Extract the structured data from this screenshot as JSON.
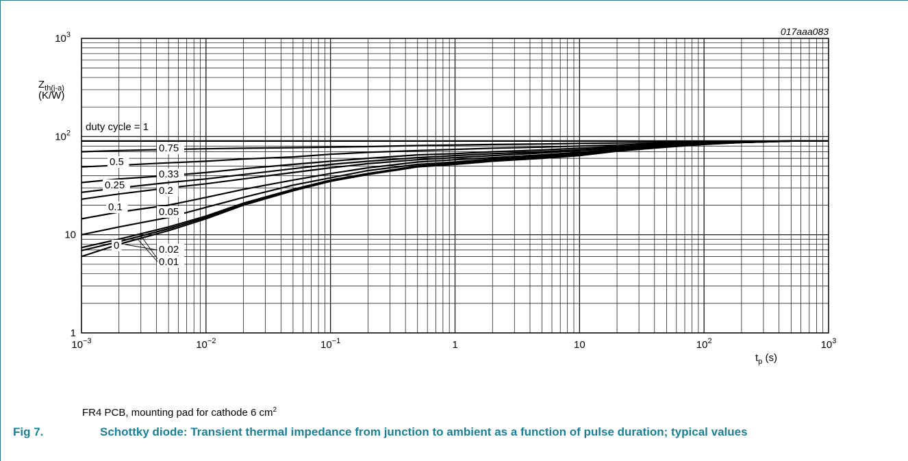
{
  "chart_data": {
    "type": "line",
    "figure_id": "017aaa083",
    "xscale": "log",
    "yscale": "log",
    "xlim": [
      0.001,
      1000
    ],
    "ylim": [
      1,
      1000
    ],
    "grid": true,
    "legend": "inline labels",
    "ylabel_main": "Z",
    "ylabel_sub": "th(j-a)",
    "ylabel_unit": "(K/W)",
    "xlabel_main": "t",
    "xlabel_sub": "p",
    "xlabel_unit": "(s)",
    "x_ticks": [
      {
        "value": 0.001,
        "base": "10",
        "exp": "−3"
      },
      {
        "value": 0.01,
        "base": "10",
        "exp": "−2"
      },
      {
        "value": 0.1,
        "base": "10",
        "exp": "−1"
      },
      {
        "value": 1,
        "base": "1",
        "exp": ""
      },
      {
        "value": 10,
        "base": "10",
        "exp": ""
      },
      {
        "value": 100,
        "base": "10",
        "exp": "2"
      },
      {
        "value": 1000,
        "base": "10",
        "exp": "3"
      }
    ],
    "y_ticks": [
      {
        "value": 1,
        "base": "1",
        "exp": ""
      },
      {
        "value": 10,
        "base": "10",
        "exp": ""
      },
      {
        "value": 100,
        "base": "10",
        "exp": "2"
      },
      {
        "value": 1000,
        "base": "10",
        "exp": "3"
      }
    ],
    "x": [
      0.001,
      0.002,
      0.005,
      0.01,
      0.02,
      0.05,
      0.1,
      0.2,
      0.5,
      1,
      2,
      5,
      10,
      20,
      50,
      100,
      200,
      500,
      1000
    ],
    "series": [
      {
        "name": "1",
        "values": [
          90,
          90,
          90,
          90,
          90,
          90,
          90,
          90,
          90,
          90,
          90,
          90,
          90,
          90,
          90,
          90,
          90,
          90,
          90
        ]
      },
      {
        "name": "0.75",
        "values": [
          70,
          72,
          74,
          75,
          76,
          77,
          78,
          79,
          81,
          82,
          83,
          84,
          85,
          86,
          87,
          88,
          89,
          90,
          90
        ]
      },
      {
        "name": "0.5",
        "values": [
          49,
          51,
          54,
          56,
          59,
          62,
          66,
          69,
          72,
          74,
          76,
          78,
          80,
          82,
          85,
          87,
          89,
          90,
          90
        ]
      },
      {
        "name": "0.33",
        "values": [
          34,
          37,
          40,
          43,
          47,
          52,
          56,
          60,
          65,
          67,
          70,
          73,
          76,
          79,
          83,
          86,
          88,
          90,
          90
        ]
      },
      {
        "name": "0.25",
        "values": [
          27,
          30,
          34,
          37,
          41,
          47,
          52,
          56,
          61,
          64,
          67,
          70,
          73,
          77,
          82,
          86,
          88,
          90,
          90
        ]
      },
      {
        "name": "0.2",
        "values": [
          23,
          26,
          30,
          33,
          37,
          43,
          48,
          53,
          58,
          61,
          64,
          68,
          72,
          76,
          81,
          85,
          88,
          90,
          90
        ]
      },
      {
        "name": "0.1",
        "values": [
          14.5,
          17,
          20,
          24,
          29,
          36,
          42,
          48,
          55,
          58,
          61,
          65,
          69,
          74,
          80,
          84,
          88,
          90,
          90
        ]
      },
      {
        "name": "0.05",
        "values": [
          10,
          12,
          15,
          19,
          24,
          32,
          38,
          45,
          52,
          55,
          59,
          63,
          67,
          73,
          79,
          84,
          87,
          90,
          90
        ]
      },
      {
        "name": "0.02",
        "values": [
          7.4,
          9,
          12,
          15.5,
          21,
          29,
          36,
          42,
          50,
          54,
          57,
          61,
          66,
          72,
          79,
          84,
          87,
          90,
          90
        ]
      },
      {
        "name": "0.01",
        "values": [
          6.9,
          8.5,
          11.5,
          15,
          20.5,
          28.5,
          35.5,
          42,
          50,
          53,
          57,
          61,
          65,
          72,
          79,
          84,
          87,
          90,
          90
        ]
      },
      {
        "name": "0",
        "values": [
          6,
          8,
          11,
          14.5,
          20,
          28,
          35,
          41,
          49,
          52,
          56,
          60,
          64,
          71,
          78,
          83,
          87,
          90,
          90
        ]
      }
    ],
    "curve_labels": [
      {
        "text": "duty cycle = 1"
      },
      {
        "text": "0.75"
      },
      {
        "text": "0.5"
      },
      {
        "text": "0.33"
      },
      {
        "text": "0.25"
      },
      {
        "text": "0.2"
      },
      {
        "text": "0.1"
      },
      {
        "text": "0.05"
      },
      {
        "text": "0"
      },
      {
        "text": "0.02"
      },
      {
        "text": "0.01"
      }
    ]
  },
  "note": {
    "text": "FR4 PCB, mounting pad for cathode 6 cm",
    "sup": "2"
  },
  "caption": {
    "number": "Fig 7.",
    "text": "Schottky diode: Transient thermal impedance from junction to ambient as a function of pulse duration; typical values"
  },
  "colors": {
    "accent": "#1b7f93",
    "ink": "#000000",
    "grid": "#000000"
  }
}
